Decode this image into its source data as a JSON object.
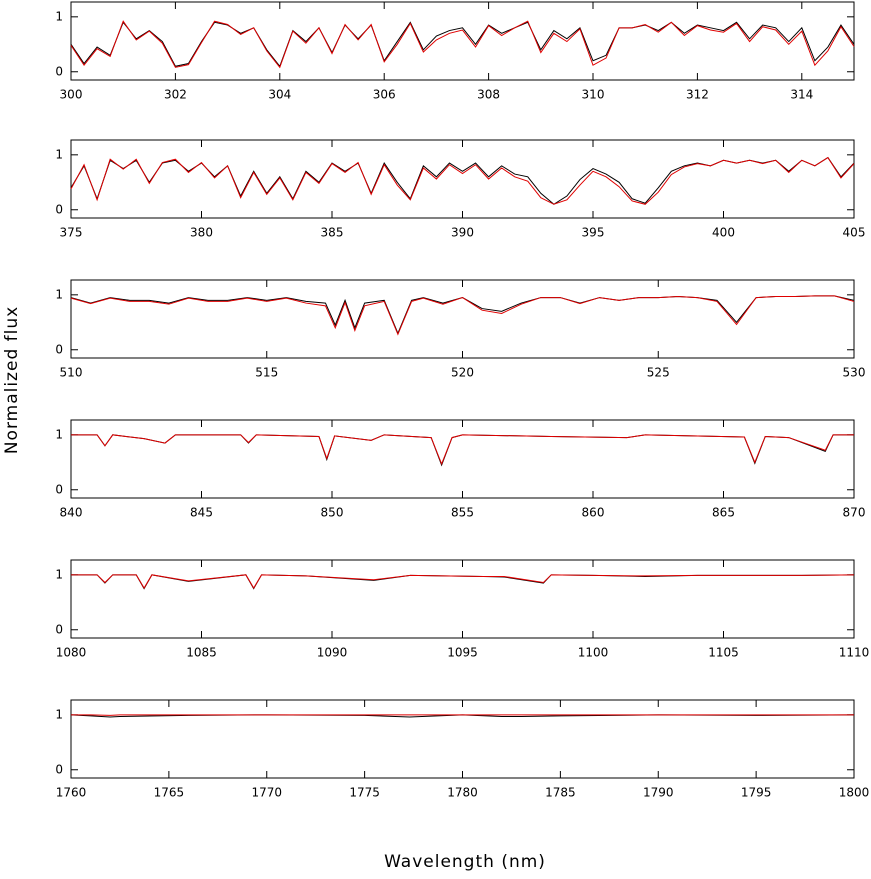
{
  "ylabel": "Normalized flux",
  "xlabel": "Wavelength (nm)",
  "chart_data": [
    {
      "type": "line",
      "xlim": [
        300,
        315
      ],
      "ylim": [
        -0.15,
        1.27
      ],
      "xticks": [
        300,
        302,
        304,
        306,
        308,
        310,
        312,
        314
      ],
      "yticks": [
        0,
        1
      ],
      "x": [
        300,
        300.25,
        300.5,
        300.75,
        301,
        301.25,
        301.5,
        301.75,
        302,
        302.25,
        302.5,
        302.75,
        303,
        303.25,
        303.5,
        303.75,
        304,
        304.25,
        304.5,
        304.75,
        305,
        305.25,
        305.5,
        305.75,
        306,
        306.25,
        306.5,
        306.75,
        307,
        307.25,
        307.5,
        307.75,
        308,
        308.25,
        308.5,
        308.75,
        309,
        309.25,
        309.5,
        309.75,
        310,
        310.25,
        310.5,
        310.75,
        311,
        311.25,
        311.5,
        311.75,
        312,
        312.25,
        312.5,
        312.75,
        313,
        313.25,
        313.5,
        313.75,
        314,
        314.25,
        314.5,
        314.75,
        315
      ],
      "series": [
        {
          "color": "#000000",
          "values": [
            0.5,
            0.15,
            0.45,
            0.3,
            0.9,
            0.6,
            0.75,
            0.55,
            0.1,
            0.15,
            0.55,
            0.9,
            0.85,
            0.7,
            0.8,
            0.4,
            0.1,
            0.75,
            0.55,
            0.8,
            0.35,
            0.85,
            0.6,
            0.85,
            0.2,
            0.55,
            0.9,
            0.4,
            0.65,
            0.75,
            0.8,
            0.5,
            0.85,
            0.7,
            0.8,
            0.9,
            0.4,
            0.75,
            0.6,
            0.8,
            0.2,
            0.3,
            0.8,
            0.8,
            0.85,
            0.75,
            0.9,
            0.7,
            0.85,
            0.8,
            0.75,
            0.9,
            0.6,
            0.85,
            0.8,
            0.55,
            0.8,
            0.2,
            0.45,
            0.85,
            0.5
          ]
        },
        {
          "color": "#e00000",
          "values": [
            0.48,
            0.12,
            0.42,
            0.28,
            0.92,
            0.58,
            0.74,
            0.52,
            0.08,
            0.13,
            0.53,
            0.92,
            0.86,
            0.68,
            0.8,
            0.38,
            0.08,
            0.74,
            0.52,
            0.8,
            0.33,
            0.86,
            0.58,
            0.86,
            0.18,
            0.5,
            0.88,
            0.36,
            0.58,
            0.7,
            0.76,
            0.45,
            0.84,
            0.66,
            0.8,
            0.92,
            0.35,
            0.7,
            0.55,
            0.78,
            0.12,
            0.25,
            0.8,
            0.8,
            0.86,
            0.72,
            0.9,
            0.66,
            0.84,
            0.76,
            0.72,
            0.88,
            0.55,
            0.82,
            0.76,
            0.5,
            0.74,
            0.12,
            0.38,
            0.82,
            0.46
          ]
        }
      ]
    },
    {
      "type": "line",
      "xlim": [
        375,
        405
      ],
      "ylim": [
        -0.15,
        1.27
      ],
      "xticks": [
        375,
        380,
        385,
        390,
        395,
        400,
        405
      ],
      "yticks": [
        0,
        1
      ],
      "x": [
        375,
        375.5,
        376,
        376.5,
        377,
        377.5,
        378,
        378.5,
        379,
        379.5,
        380,
        380.5,
        381,
        381.5,
        382,
        382.5,
        383,
        383.5,
        384,
        384.5,
        385,
        385.5,
        386,
        386.5,
        387,
        387.5,
        388,
        388.5,
        389,
        389.5,
        390,
        390.5,
        391,
        391.5,
        392,
        392.5,
        393,
        393.5,
        394,
        394.5,
        395,
        395.5,
        396,
        396.5,
        397,
        397.5,
        398,
        398.5,
        399,
        399.5,
        400,
        400.5,
        401,
        401.5,
        402,
        402.5,
        403,
        403.5,
        404,
        404.5,
        405
      ],
      "series": [
        {
          "color": "#000000",
          "values": [
            0.4,
            0.8,
            0.2,
            0.9,
            0.75,
            0.9,
            0.5,
            0.85,
            0.9,
            0.7,
            0.85,
            0.6,
            0.8,
            0.25,
            0.7,
            0.3,
            0.6,
            0.2,
            0.7,
            0.5,
            0.85,
            0.7,
            0.85,
            0.3,
            0.85,
            0.5,
            0.2,
            0.8,
            0.6,
            0.85,
            0.7,
            0.85,
            0.6,
            0.8,
            0.65,
            0.6,
            0.3,
            0.1,
            0.25,
            0.55,
            0.75,
            0.65,
            0.5,
            0.2,
            0.12,
            0.4,
            0.7,
            0.8,
            0.85,
            0.8,
            0.9,
            0.85,
            0.9,
            0.85,
            0.9,
            0.7,
            0.9,
            0.8,
            0.95,
            0.6,
            0.85
          ]
        },
        {
          "color": "#e00000",
          "values": [
            0.38,
            0.82,
            0.18,
            0.92,
            0.74,
            0.92,
            0.48,
            0.86,
            0.92,
            0.68,
            0.86,
            0.58,
            0.8,
            0.22,
            0.68,
            0.28,
            0.58,
            0.18,
            0.68,
            0.48,
            0.84,
            0.68,
            0.86,
            0.28,
            0.82,
            0.45,
            0.18,
            0.76,
            0.56,
            0.82,
            0.66,
            0.82,
            0.56,
            0.76,
            0.6,
            0.52,
            0.22,
            0.1,
            0.18,
            0.45,
            0.7,
            0.6,
            0.42,
            0.16,
            0.1,
            0.32,
            0.64,
            0.78,
            0.84,
            0.8,
            0.9,
            0.85,
            0.9,
            0.84,
            0.9,
            0.68,
            0.9,
            0.8,
            0.95,
            0.58,
            0.84
          ]
        }
      ]
    },
    {
      "type": "line",
      "xlim": [
        510,
        530
      ],
      "ylim": [
        -0.15,
        1.27
      ],
      "xticks": [
        510,
        515,
        520,
        525,
        530
      ],
      "yticks": [
        0,
        1
      ],
      "x": [
        510,
        510.5,
        511,
        511.5,
        512,
        512.5,
        513,
        513.5,
        514,
        514.5,
        515,
        515.5,
        516,
        516.5,
        516.75,
        517,
        517.25,
        517.5,
        518,
        518.35,
        518.7,
        519,
        519.5,
        520,
        520.5,
        521,
        521.5,
        522,
        522.5,
        523,
        523.5,
        524,
        524.5,
        525,
        525.5,
        526,
        526.5,
        527,
        527.5,
        528,
        528.5,
        529,
        529.5,
        530
      ],
      "series": [
        {
          "color": "#000000",
          "values": [
            0.95,
            0.85,
            0.95,
            0.9,
            0.9,
            0.85,
            0.95,
            0.9,
            0.9,
            0.95,
            0.9,
            0.95,
            0.88,
            0.85,
            0.45,
            0.9,
            0.4,
            0.85,
            0.9,
            0.3,
            0.9,
            0.95,
            0.85,
            0.95,
            0.75,
            0.7,
            0.85,
            0.95,
            0.95,
            0.85,
            0.95,
            0.9,
            0.95,
            0.95,
            0.97,
            0.95,
            0.9,
            0.5,
            0.95,
            0.97,
            0.97,
            0.98,
            0.98,
            0.9
          ]
        },
        {
          "color": "#e00000",
          "values": [
            0.94,
            0.84,
            0.94,
            0.88,
            0.88,
            0.83,
            0.94,
            0.88,
            0.88,
            0.94,
            0.88,
            0.94,
            0.85,
            0.8,
            0.4,
            0.86,
            0.35,
            0.8,
            0.88,
            0.28,
            0.88,
            0.94,
            0.83,
            0.95,
            0.72,
            0.66,
            0.83,
            0.95,
            0.95,
            0.84,
            0.95,
            0.9,
            0.95,
            0.95,
            0.97,
            0.95,
            0.88,
            0.46,
            0.95,
            0.97,
            0.97,
            0.98,
            0.98,
            0.88
          ]
        }
      ]
    },
    {
      "type": "line",
      "xlim": [
        840,
        870
      ],
      "ylim": [
        -0.15,
        1.27
      ],
      "xticks": [
        840,
        845,
        850,
        855,
        860,
        865,
        870
      ],
      "yticks": [
        0,
        1
      ],
      "x": [
        840,
        841,
        841.3,
        841.6,
        842.8,
        843.6,
        844,
        846.5,
        846.8,
        847.1,
        849.5,
        849.8,
        850.1,
        851.5,
        852,
        853.8,
        854.2,
        854.6,
        855,
        858.4,
        861.3,
        862,
        865.8,
        866.2,
        866.6,
        867.5,
        868.9,
        869.2,
        870
      ],
      "series": [
        {
          "color": "#000000",
          "values": [
            1,
            1,
            0.8,
            1,
            0.93,
            0.85,
            1,
            1,
            0.85,
            1,
            0.97,
            0.55,
            0.98,
            0.9,
            1,
            0.95,
            0.45,
            0.95,
            1,
            0.97,
            0.95,
            1,
            0.96,
            0.48,
            0.97,
            0.95,
            0.7,
            1,
            1
          ]
        },
        {
          "color": "#e00000",
          "values": [
            1,
            1,
            0.8,
            1,
            0.93,
            0.85,
            1,
            1,
            0.86,
            1,
            0.97,
            0.57,
            0.98,
            0.9,
            1,
            0.95,
            0.47,
            0.95,
            1,
            0.97,
            0.95,
            1,
            0.96,
            0.5,
            0.97,
            0.95,
            0.72,
            1,
            1
          ]
        }
      ]
    },
    {
      "type": "line",
      "xlim": [
        1080,
        1110
      ],
      "ylim": [
        -0.15,
        1.27
      ],
      "xticks": [
        1080,
        1085,
        1090,
        1095,
        1100,
        1105,
        1110
      ],
      "yticks": [
        0,
        1
      ],
      "x": [
        1080,
        1081,
        1081.3,
        1081.6,
        1082.5,
        1082.8,
        1083.1,
        1084.5,
        1086.7,
        1087,
        1087.3,
        1089,
        1091.6,
        1093,
        1095.8,
        1096.6,
        1098.1,
        1098.4,
        1100,
        1102,
        1104,
        1106,
        1108,
        1110
      ],
      "series": [
        {
          "color": "#000000",
          "values": [
            1,
            1,
            0.85,
            1,
            1,
            0.75,
            1,
            0.88,
            1,
            0.75,
            1,
            0.98,
            0.9,
            0.99,
            0.97,
            0.96,
            0.85,
            1,
            0.99,
            0.97,
            0.99,
            0.99,
            0.99,
            1
          ]
        },
        {
          "color": "#e00000",
          "values": [
            1,
            1,
            0.86,
            1,
            1,
            0.76,
            1,
            0.89,
            1,
            0.76,
            1,
            0.98,
            0.91,
            0.99,
            0.97,
            0.97,
            0.86,
            1,
            0.99,
            0.98,
            0.99,
            0.99,
            0.99,
            1
          ]
        }
      ]
    },
    {
      "type": "line",
      "xlim": [
        1760,
        1800
      ],
      "ylim": [
        -0.15,
        1.27
      ],
      "xticks": [
        1760,
        1765,
        1770,
        1775,
        1780,
        1785,
        1790,
        1795,
        1800
      ],
      "yticks": [
        0,
        1
      ],
      "x": [
        1760,
        1761,
        1762,
        1762.5,
        1766,
        1770,
        1775,
        1777.3,
        1780,
        1782,
        1783,
        1785,
        1790,
        1795,
        1800
      ],
      "series": [
        {
          "color": "#000000",
          "values": [
            1,
            0.98,
            0.96,
            0.97,
            0.99,
            1,
            0.99,
            0.96,
            1,
            0.97,
            0.97,
            0.98,
            1,
            0.99,
            1
          ]
        },
        {
          "color": "#e00000",
          "values": [
            1,
            1,
            0.99,
            1,
            1,
            1,
            1,
            1,
            1,
            1,
            1,
            1,
            1,
            1,
            1
          ]
        }
      ]
    }
  ]
}
